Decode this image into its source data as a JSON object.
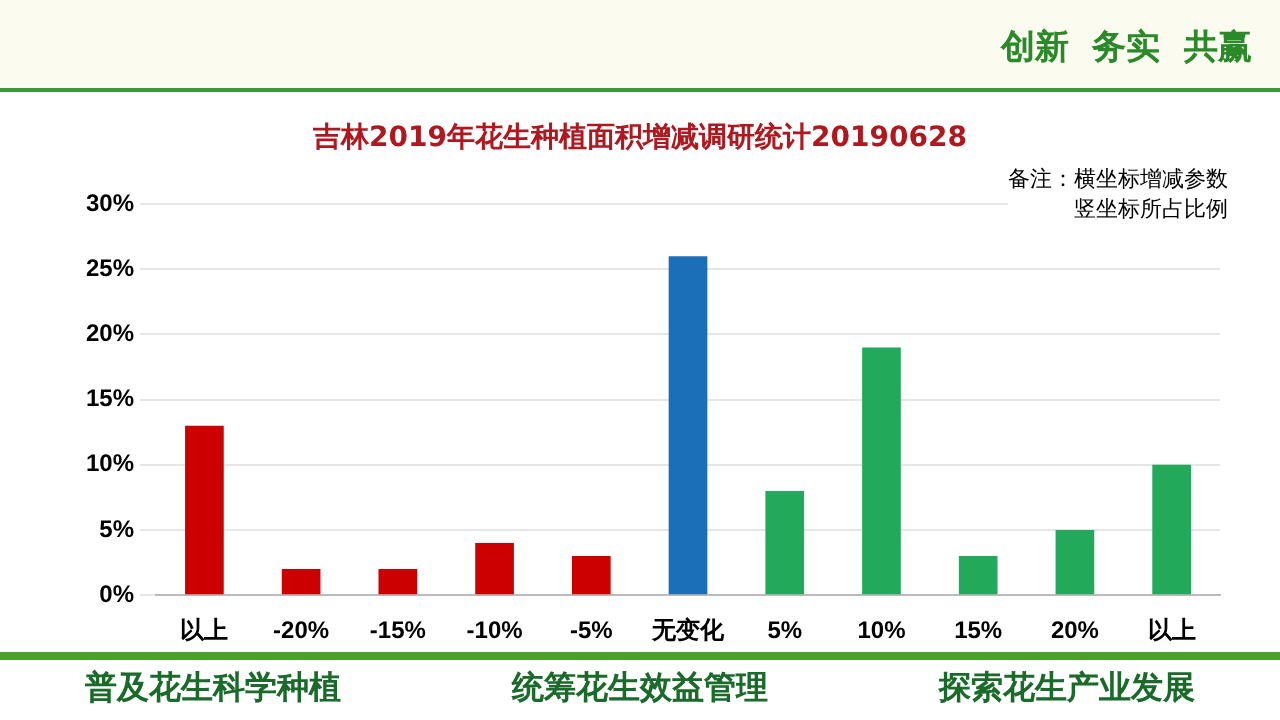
{
  "chart_data": {
    "type": "bar",
    "title": "吉林2019年花生种植面积增减调研统计20190628",
    "categories": [
      "以上",
      "-20%",
      "-15%",
      "-10%",
      "-5%",
      "无变化",
      "5%",
      "10%",
      "15%",
      "20%",
      "以上"
    ],
    "values": [
      13,
      2,
      2,
      4,
      3,
      26,
      8,
      19,
      3,
      5,
      10
    ],
    "colors": [
      "#cc0000",
      "#cc0000",
      "#cc0000",
      "#cc0000",
      "#cc0000",
      "#1a6fb8",
      "#22aa5a",
      "#22aa5a",
      "#22aa5a",
      "#22aa5a",
      "#22aa5a"
    ],
    "ylim": [
      0,
      30
    ],
    "yticks": [
      {
        "value": 0,
        "label": "0%"
      },
      {
        "value": 5,
        "label": "5%"
      },
      {
        "value": 10,
        "label": "10%"
      },
      {
        "value": 15,
        "label": "15%"
      },
      {
        "value": 20,
        "label": "20%"
      },
      {
        "value": 25,
        "label": "25%"
      },
      {
        "value": 30,
        "label": "30%"
      }
    ],
    "grid": "y",
    "legend": false,
    "annotations": [
      "备注：横坐标增减参数",
      "竖坐标所占比例",
      "创新  务实  共赢",
      "普及花生科学种植",
      "统筹花生效益管理",
      "探索花生产业发展"
    ]
  }
}
